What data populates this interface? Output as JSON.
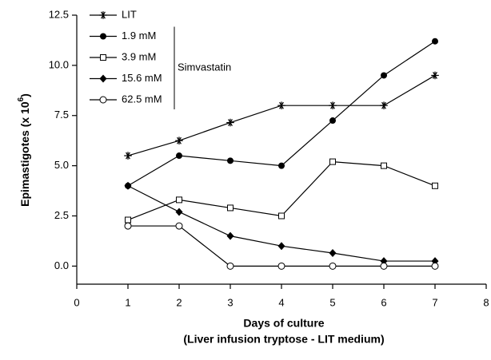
{
  "chart_data": {
    "type": "line",
    "xlabel": [
      "Days of culture",
      "(Liver infusion tryptose - LIT medium)"
    ],
    "ylabel": [
      "Epimastigotes (x 10",
      "6",
      ")"
    ],
    "x": [
      1,
      2,
      3,
      4,
      5,
      6,
      7
    ],
    "series": [
      {
        "name": "LIT",
        "color": "#000000",
        "marker": "star",
        "values": [
          5.5,
          6.25,
          7.15,
          8.0,
          8.0,
          8.0,
          9.5
        ]
      },
      {
        "name": "1.9 mM",
        "color": "#000000",
        "marker": "filled-circle",
        "values": [
          4.0,
          5.5,
          5.25,
          5.0,
          7.25,
          9.5,
          11.2
        ]
      },
      {
        "name": "3.9 mM",
        "color": "#000000",
        "marker": "open-square",
        "values": [
          2.3,
          3.3,
          2.9,
          2.5,
          5.2,
          5.0,
          4.0
        ]
      },
      {
        "name": "15.6 mM",
        "color": "#000000",
        "marker": "filled-diamond",
        "values": [
          4.0,
          2.7,
          1.5,
          1.0,
          0.65,
          0.25,
          0.25
        ]
      },
      {
        "name": "62.5 mM",
        "color": "#000000",
        "marker": "open-circle",
        "values": [
          2.0,
          2.0,
          0,
          0,
          0,
          0,
          0
        ]
      }
    ],
    "annotation": "Simvastatin",
    "xlim": [
      0,
      8
    ],
    "xticks": [
      0,
      1,
      2,
      3,
      4,
      5,
      6,
      7,
      8
    ],
    "ylim": [
      -0.9,
      12.5
    ],
    "yticks": [
      {
        "value": 0,
        "label": "0.0"
      },
      2.5,
      {
        "value": 5,
        "label": "5.0"
      },
      7.5,
      {
        "value": 10,
        "label": "10.0"
      },
      12.5
    ],
    "legend": "upper left",
    "grid": false
  }
}
